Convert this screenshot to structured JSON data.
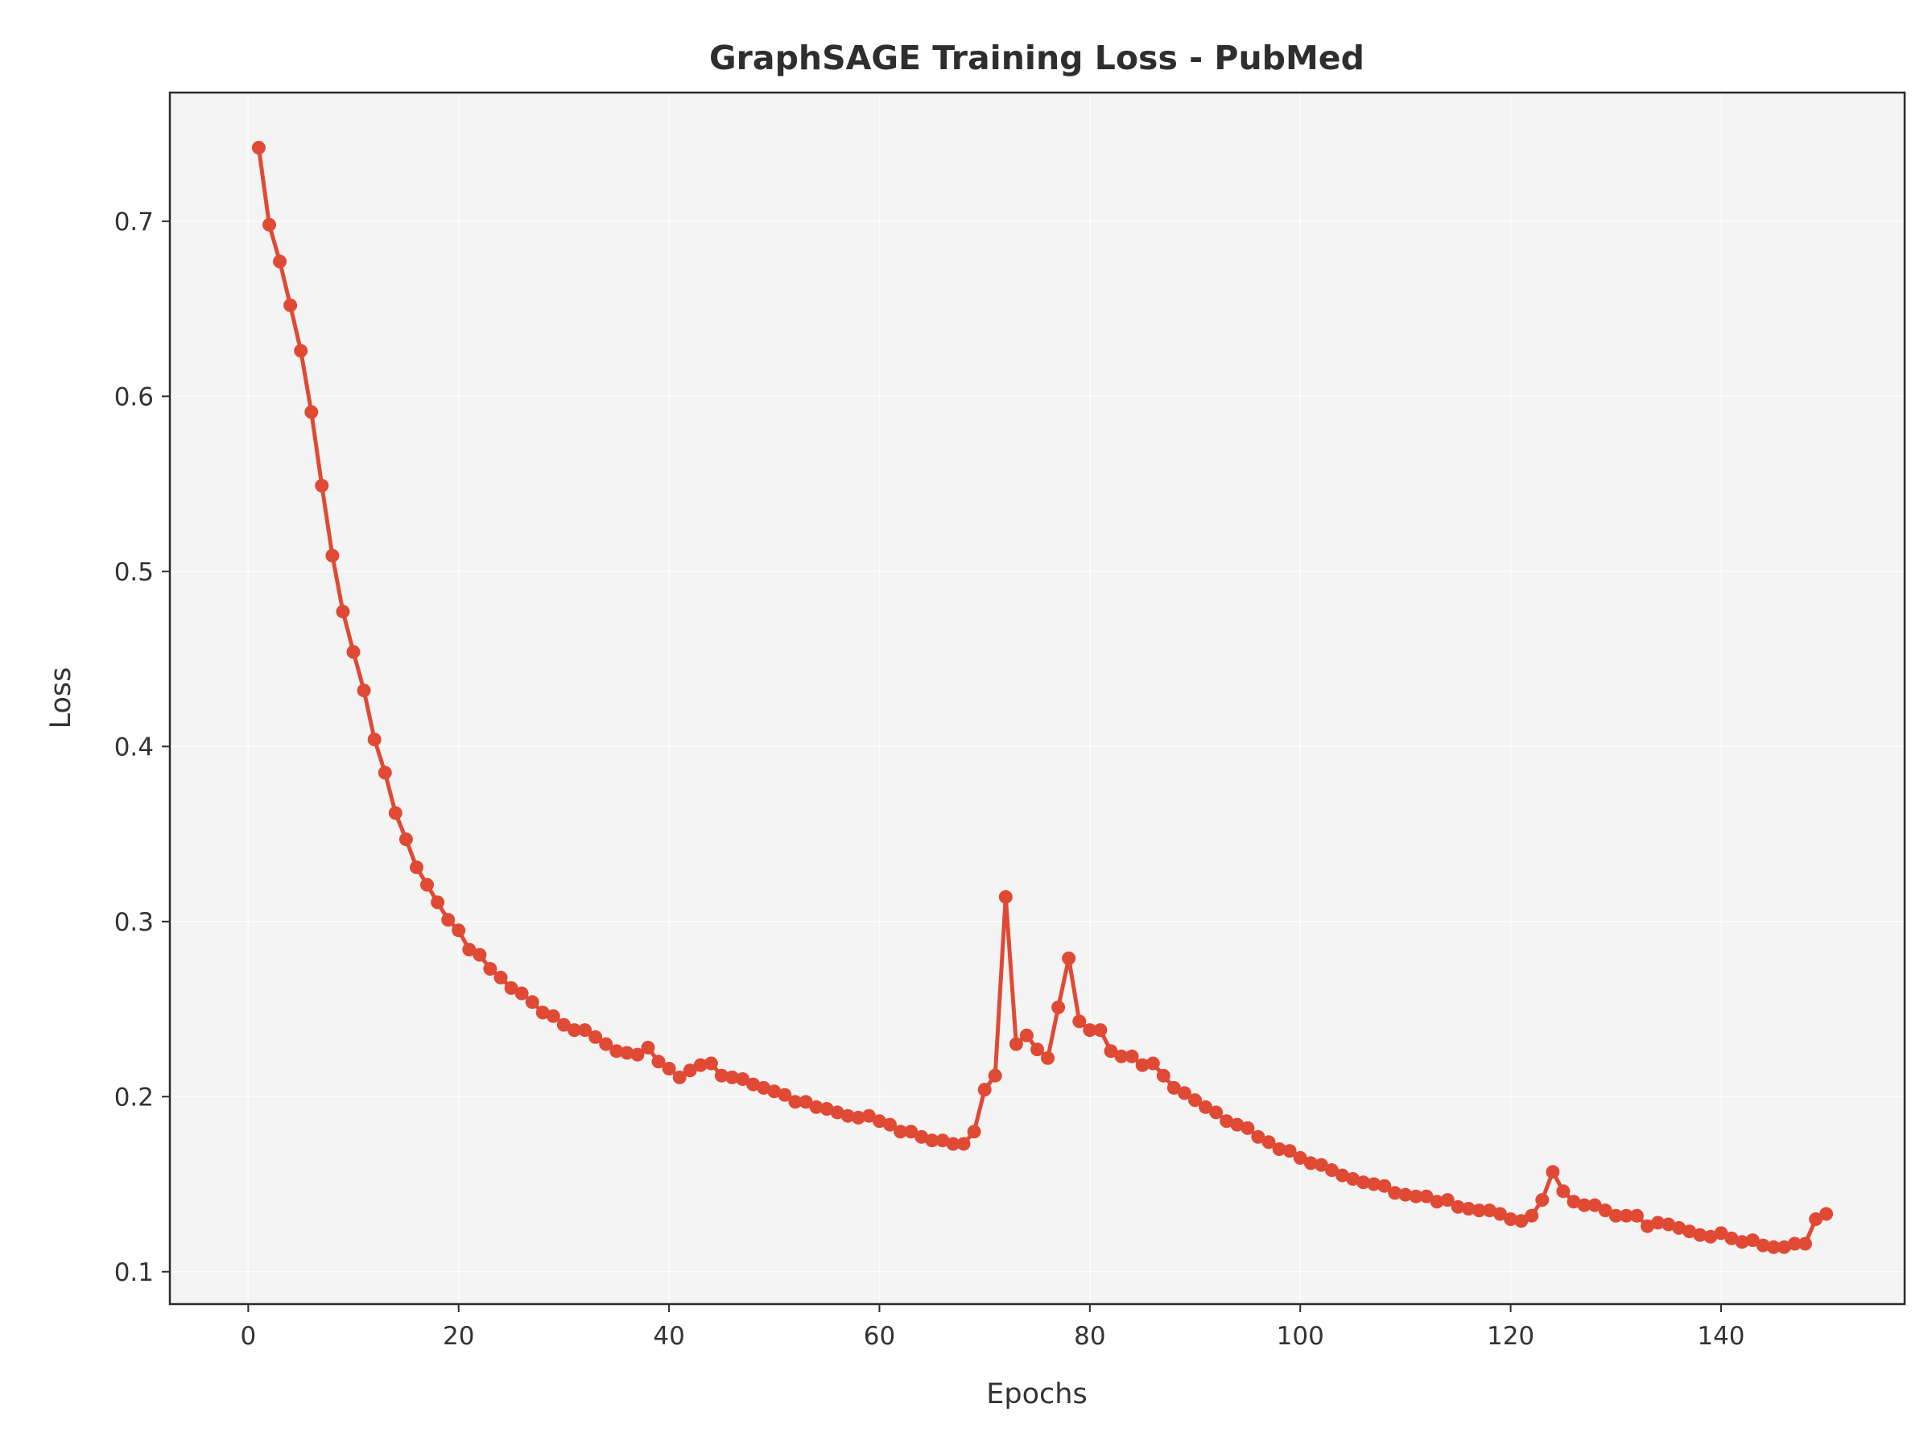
{
  "chart_data": {
    "type": "line",
    "title": "GraphSAGE Training Loss - PubMed",
    "xlabel": "Epochs",
    "ylabel": "Loss",
    "xlim": [
      -7.45,
      157.45
    ],
    "ylim": [
      0.0815,
      0.7735
    ],
    "xticks": [
      0,
      20,
      40,
      60,
      80,
      100,
      120,
      140
    ],
    "yticks": [
      0.1,
      0.2,
      0.3,
      0.4,
      0.5,
      0.6,
      0.7
    ],
    "grid": true,
    "legend": "none",
    "colors": {
      "line": "#e04a35",
      "plot_bg": "#f4f4f4",
      "grid": "#ffffff",
      "axes": "#2b2b2b"
    },
    "series": [
      {
        "x": [
          1,
          2,
          3,
          4,
          5,
          6,
          7,
          8,
          9,
          10,
          11,
          12,
          13,
          14,
          15,
          16,
          17,
          18,
          19,
          20,
          21,
          22,
          23,
          24,
          25,
          26,
          27,
          28,
          29,
          30,
          31,
          32,
          33,
          34,
          35,
          36,
          37,
          38,
          39,
          40,
          41,
          42,
          43,
          44,
          45,
          46,
          47,
          48,
          49,
          50,
          51,
          52,
          53,
          54,
          55,
          56,
          57,
          58,
          59,
          60,
          61,
          62,
          63,
          64,
          65,
          66,
          67,
          68,
          69,
          70,
          71,
          72,
          73,
          74,
          75,
          76,
          77,
          78,
          79,
          80,
          81,
          82,
          83,
          84,
          85,
          86,
          87,
          88,
          89,
          90,
          91,
          92,
          93,
          94,
          95,
          96,
          97,
          98,
          99,
          100,
          101,
          102,
          103,
          104,
          105,
          106,
          107,
          108,
          109,
          110,
          111,
          112,
          113,
          114,
          115,
          116,
          117,
          118,
          119,
          120,
          121,
          122,
          123,
          124,
          125,
          126,
          127,
          128,
          129,
          130,
          131,
          132,
          133,
          134,
          135,
          136,
          137,
          138,
          139,
          140,
          141,
          142,
          143,
          144,
          145,
          146,
          147,
          148,
          149,
          150
        ],
        "values": [
          0.742,
          0.698,
          0.677,
          0.652,
          0.626,
          0.591,
          0.549,
          0.509,
          0.477,
          0.454,
          0.432,
          0.404,
          0.385,
          0.362,
          0.347,
          0.331,
          0.321,
          0.311,
          0.301,
          0.295,
          0.284,
          0.281,
          0.273,
          0.268,
          0.262,
          0.259,
          0.254,
          0.248,
          0.246,
          0.241,
          0.238,
          0.238,
          0.234,
          0.23,
          0.226,
          0.225,
          0.224,
          0.228,
          0.22,
          0.216,
          0.211,
          0.215,
          0.218,
          0.219,
          0.212,
          0.211,
          0.21,
          0.207,
          0.205,
          0.203,
          0.201,
          0.197,
          0.197,
          0.194,
          0.193,
          0.191,
          0.189,
          0.188,
          0.189,
          0.186,
          0.184,
          0.18,
          0.18,
          0.177,
          0.175,
          0.175,
          0.173,
          0.173,
          0.18,
          0.204,
          0.212,
          0.314,
          0.23,
          0.235,
          0.227,
          0.222,
          0.251,
          0.279,
          0.243,
          0.238,
          0.238,
          0.226,
          0.223,
          0.223,
          0.218,
          0.219,
          0.212,
          0.205,
          0.202,
          0.198,
          0.194,
          0.191,
          0.186,
          0.184,
          0.182,
          0.177,
          0.174,
          0.17,
          0.169,
          0.165,
          0.162,
          0.161,
          0.158,
          0.155,
          0.153,
          0.151,
          0.15,
          0.149,
          0.145,
          0.144,
          0.143,
          0.143,
          0.14,
          0.141,
          0.137,
          0.136,
          0.135,
          0.135,
          0.133,
          0.13,
          0.129,
          0.132,
          0.141,
          0.157,
          0.146,
          0.14,
          0.138,
          0.138,
          0.135,
          0.132,
          0.132,
          0.132,
          0.126,
          0.128,
          0.127,
          0.125,
          0.123,
          0.121,
          0.12,
          0.122,
          0.119,
          0.117,
          0.118,
          0.115,
          0.114,
          0.114,
          0.116,
          0.116,
          0.13,
          0.133
        ]
      }
    ]
  }
}
